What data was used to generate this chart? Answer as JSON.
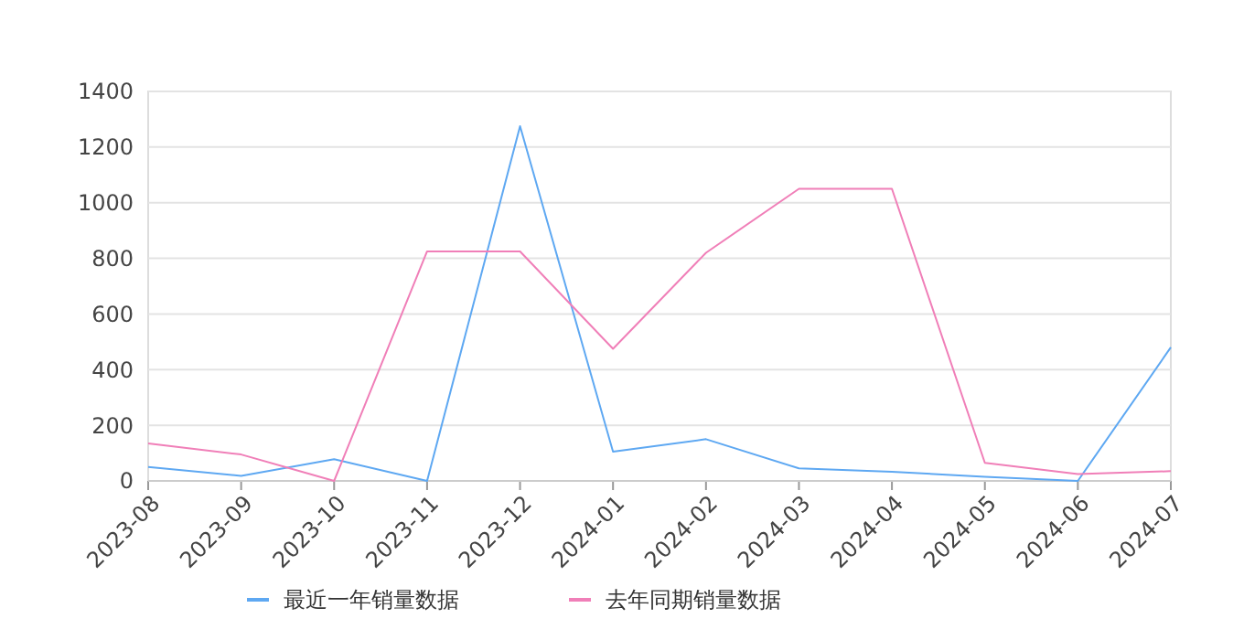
{
  "chart_data": {
    "type": "line",
    "categories": [
      "2023-08",
      "2023-09",
      "2023-10",
      "2023-11",
      "2023-12",
      "2024-01",
      "2024-02",
      "2024-03",
      "2024-04",
      "2024-05",
      "2024-06",
      "2024-07"
    ],
    "series": [
      {
        "name": "最近一年销量数据",
        "color": "#5ea8f2",
        "values": [
          50,
          18,
          78,
          0,
          1275,
          105,
          150,
          45,
          33,
          15,
          0,
          480
        ]
      },
      {
        "name": "去年同期销量数据",
        "color": "#f07fb8",
        "values": [
          135,
          95,
          0,
          825,
          825,
          475,
          820,
          1050,
          1050,
          65,
          25,
          35
        ]
      }
    ],
    "ylim": [
      0,
      1400
    ],
    "yticks": [
      0,
      200,
      400,
      600,
      800,
      1000,
      1200,
      1400
    ],
    "grid": "y",
    "legend": "bottom",
    "marker": "none",
    "line_style": "solid"
  }
}
